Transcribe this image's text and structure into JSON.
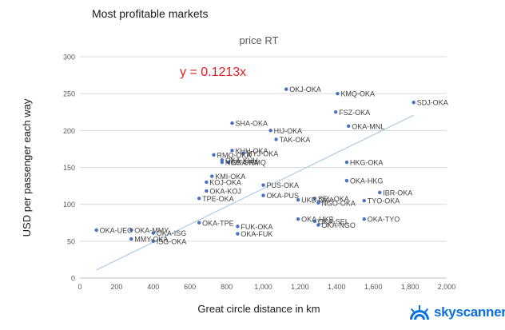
{
  "heading": "Most profitable markets",
  "brand": {
    "name": "skyscanner",
    "color": "#0770e3"
  },
  "chart_data": {
    "type": "scatter",
    "title": "price RT",
    "xlabel": "Great circle distance in km",
    "ylabel": "USD per passenger each way",
    "xlim": [
      0,
      2000
    ],
    "ylim": [
      0,
      300
    ],
    "x_ticks": [
      0,
      200,
      400,
      600,
      800,
      1000,
      1200,
      1400,
      1600,
      1800,
      2000
    ],
    "y_ticks": [
      0,
      50,
      100,
      150,
      200,
      250,
      300
    ],
    "x_tick_labels": [
      "0",
      "200",
      "400",
      "600",
      "800",
      "1,000",
      "1,200",
      "1,400",
      "1,600",
      "1,800",
      "2,000"
    ],
    "y_tick_labels": [
      "0",
      "50",
      "100",
      "150",
      "200",
      "250",
      "300"
    ],
    "grid": true,
    "point_color": "#4472c4",
    "trendline": {
      "slope": 0.1213,
      "equation": "y = 0.1213x",
      "color": "#9dc3e6",
      "equation_color": "#e02020"
    },
    "points": [
      {
        "label": "OKA-UEO",
        "x": 90,
        "y": 65
      },
      {
        "label": "OKA-MMY",
        "x": 280,
        "y": 65
      },
      {
        "label": "MMY-OKA",
        "x": 280,
        "y": 53
      },
      {
        "label": "OKA-ISG",
        "x": 400,
        "y": 61
      },
      {
        "label": "ISG-OKA",
        "x": 400,
        "y": 50
      },
      {
        "label": "OKA-TPE",
        "x": 650,
        "y": 75
      },
      {
        "label": "TPE-OKA",
        "x": 650,
        "y": 108
      },
      {
        "label": "OKA-KOJ",
        "x": 690,
        "y": 118
      },
      {
        "label": "KOJ-OKA",
        "x": 690,
        "y": 130
      },
      {
        "label": "KMI-OKA",
        "x": 720,
        "y": 138
      },
      {
        "label": "RMQ-OKA",
        "x": 730,
        "y": 167
      },
      {
        "label": "KHH-OKA",
        "x": 830,
        "y": 173
      },
      {
        "label": "MYJ-OKA",
        "x": 890,
        "y": 169
      },
      {
        "label": "OKA-KHH",
        "x": 775,
        "y": 160
      },
      {
        "label": "NGS-OKA",
        "x": 775,
        "y": 157
      },
      {
        "label": "OKA-RMQ",
        "x": 810,
        "y": 157
      },
      {
        "label": "SHA-OKA",
        "x": 830,
        "y": 210
      },
      {
        "label": "HIJ-OKA",
        "x": 1040,
        "y": 200
      },
      {
        "label": "TAK-OKA",
        "x": 1070,
        "y": 188
      },
      {
        "label": "OKJ-OKA",
        "x": 1125,
        "y": 256
      },
      {
        "label": "PUS-OKA",
        "x": 1000,
        "y": 126
      },
      {
        "label": "OKA-PUS",
        "x": 1000,
        "y": 112
      },
      {
        "label": "FUK-OKA",
        "x": 860,
        "y": 70
      },
      {
        "label": "OKA-FUK",
        "x": 860,
        "y": 60
      },
      {
        "label": "UKB-OKA",
        "x": 1190,
        "y": 106
      },
      {
        "label": "SEL-OKA",
        "x": 1280,
        "y": 108
      },
      {
        "label": "NGO-OKA",
        "x": 1300,
        "y": 102
      },
      {
        "label": "OKA-HKB",
        "x": 1190,
        "y": 80
      },
      {
        "label": "OKA-SEL",
        "x": 1280,
        "y": 77
      },
      {
        "label": "OKA-NGO",
        "x": 1300,
        "y": 72
      },
      {
        "label": "KMQ-OKA",
        "x": 1405,
        "y": 250
      },
      {
        "label": "FSZ-OKA",
        "x": 1395,
        "y": 225
      },
      {
        "label": "OKA-MNL",
        "x": 1465,
        "y": 206
      },
      {
        "label": "HKG-OKA",
        "x": 1455,
        "y": 157
      },
      {
        "label": "OKA-HKG",
        "x": 1455,
        "y": 132
      },
      {
        "label": "IBR-OKA",
        "x": 1635,
        "y": 116
      },
      {
        "label": "TYO-OKA",
        "x": 1550,
        "y": 105
      },
      {
        "label": "OKA-TYO",
        "x": 1550,
        "y": 80
      },
      {
        "label": "SDJ-OKA",
        "x": 1820,
        "y": 238
      }
    ]
  }
}
